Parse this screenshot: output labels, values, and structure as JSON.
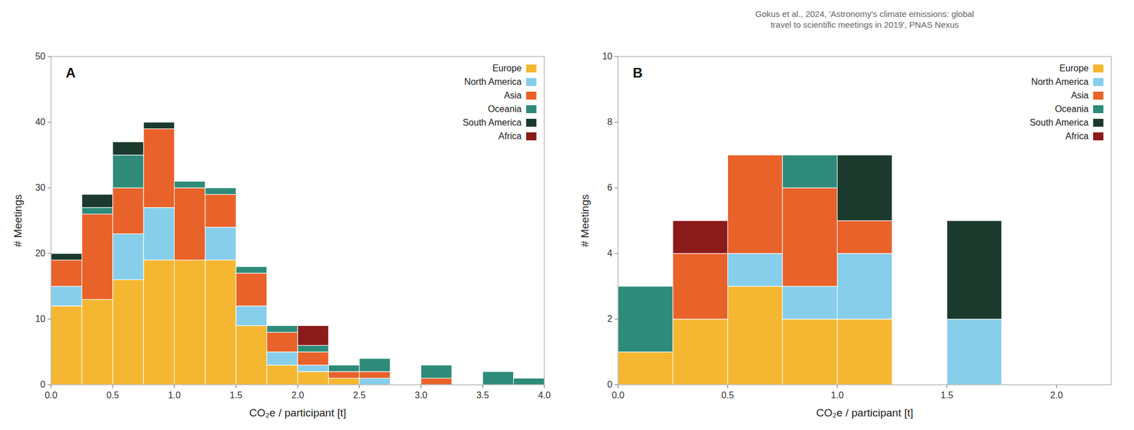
{
  "chart_data": [
    {
      "type": "histogram",
      "title": "A",
      "stacked": true,
      "legend": "upper right",
      "grid": false,
      "xlabel": "CO₂e / participant [t]",
      "ylabel": "# Meetings",
      "bins": [
        0.0,
        0.25,
        0.5,
        0.75,
        1.0,
        1.25,
        1.5,
        1.75,
        2.0,
        2.25,
        2.5,
        2.75,
        3.0,
        3.25,
        3.5,
        3.75,
        4.0
      ],
      "series": [
        {
          "name": "Europe",
          "color": "#F5B731",
          "values": [
            12,
            13,
            16,
            19,
            19,
            19,
            9,
            3,
            2,
            1,
            0,
            0,
            0,
            0,
            0,
            0
          ]
        },
        {
          "name": "North America",
          "color": "#87CEEB",
          "values": [
            3,
            0,
            7,
            8,
            0,
            5,
            3,
            2,
            1,
            0,
            1,
            0,
            0,
            0,
            0,
            0
          ]
        },
        {
          "name": "Asia",
          "color": "#E8622A",
          "values": [
            4,
            13,
            7,
            12,
            11,
            5,
            5,
            3,
            2,
            1,
            1,
            0,
            1,
            0,
            0,
            0
          ]
        },
        {
          "name": "Oceania",
          "color": "#2E8B7A",
          "values": [
            0,
            1,
            5,
            0,
            1,
            1,
            1,
            1,
            1,
            1,
            2,
            0,
            2,
            0,
            2,
            1
          ]
        },
        {
          "name": "South America",
          "color": "#1B3A2D",
          "values": [
            1,
            2,
            2,
            1,
            0,
            0,
            0,
            0,
            0,
            0,
            0,
            0,
            0,
            0,
            0,
            0
          ]
        },
        {
          "name": "Africa",
          "color": "#8B1A1A",
          "values": [
            0,
            0,
            0,
            0,
            0,
            0,
            0,
            0,
            3,
            0,
            0,
            0,
            0,
            0,
            0,
            0
          ]
        }
      ],
      "xlim": [
        0.0,
        4.0
      ],
      "xticks": [
        {
          "value": 0.0,
          "label": "0.0"
        },
        0.5,
        {
          "value": 1.0,
          "label": "1.0"
        },
        1.5,
        {
          "value": 2.0,
          "label": "2.0"
        },
        2.5,
        {
          "value": 3.0,
          "label": "3.0"
        },
        3.5,
        {
          "value": 4.0,
          "label": "4.0"
        }
      ],
      "ylim": [
        0,
        50
      ],
      "yticks": [
        0,
        10,
        20,
        30,
        40,
        50
      ]
    },
    {
      "type": "histogram",
      "title": "B",
      "stacked": true,
      "legend": "upper right",
      "grid": false,
      "annotation": "Gokus et al., 2024, 'Astronomy's climate emissions: global\ntravel to scientific meetings in 2019', PNAS Nexus",
      "xlabel": "CO₂e / participant [t]",
      "ylabel": "# Meetings",
      "bins": [
        0.0,
        0.25,
        0.5,
        0.75,
        1.0,
        1.25,
        1.5,
        1.75,
        2.0,
        2.25
      ],
      "series": [
        {
          "name": "Europe",
          "color": "#F5B731",
          "values": [
            1,
            2,
            3,
            2,
            2,
            0,
            0,
            0,
            0
          ]
        },
        {
          "name": "North America",
          "color": "#87CEEB",
          "values": [
            0,
            0,
            1,
            1,
            2,
            0,
            2,
            0,
            0
          ]
        },
        {
          "name": "Asia",
          "color": "#E8622A",
          "values": [
            0,
            2,
            3,
            3,
            1,
            0,
            0,
            0,
            0
          ]
        },
        {
          "name": "Oceania",
          "color": "#2E8B7A",
          "values": [
            2,
            0,
            0,
            1,
            0,
            0,
            0,
            0,
            0
          ]
        },
        {
          "name": "South America",
          "color": "#1B3A2D",
          "values": [
            0,
            0,
            0,
            0,
            2,
            0,
            3,
            0,
            0
          ]
        },
        {
          "name": "Africa",
          "color": "#8B1A1A",
          "values": [
            0,
            1,
            0,
            0,
            0,
            0,
            0,
            0,
            0
          ]
        }
      ],
      "xlim": [
        0.0,
        2.25
      ],
      "xticks": [
        {
          "value": 0.0,
          "label": "0.0"
        },
        0.5,
        {
          "value": 1.0,
          "label": "1.0"
        },
        1.5,
        {
          "value": 2.0,
          "label": "2.0"
        }
      ],
      "ylim": [
        0,
        10
      ],
      "yticks": [
        0,
        2,
        4,
        6,
        8,
        10
      ]
    }
  ]
}
